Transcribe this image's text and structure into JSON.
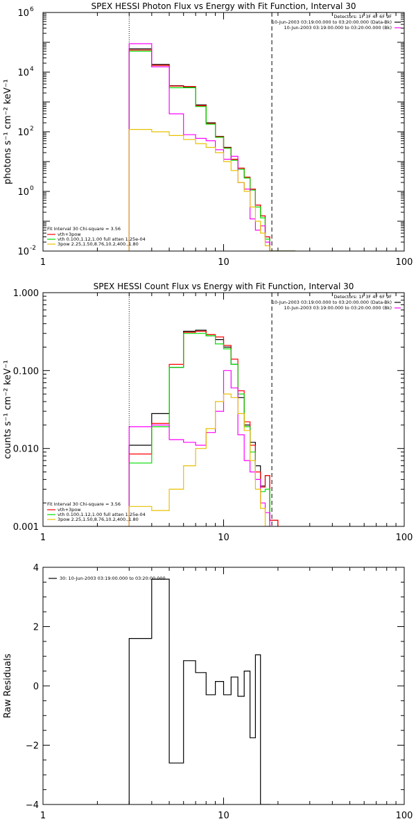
{
  "chart_data": [
    {
      "type": "line",
      "title": "SPEX HESSI Photon Flux vs Energy with Fit Function, Interval 30",
      "ylabel": "photons s⁻¹ cm⁻² keV⁻¹",
      "xlabel": "",
      "xscale": "log",
      "yscale": "log",
      "xlim": [
        1,
        100
      ],
      "ylim": [
        0.01,
        1000000
      ],
      "xticks": [
        {
          "v": 1,
          "label": "1"
        },
        {
          "v": 10,
          "label": "10"
        },
        {
          "v": 100,
          "label": "100"
        }
      ],
      "yticks": [
        {
          "v": 0.01,
          "base": "10",
          "exp": "-2"
        },
        {
          "v": 1,
          "base": "10",
          "exp": "0"
        },
        {
          "v": 100,
          "base": "10",
          "exp": "2"
        },
        {
          "v": 10000,
          "base": "10",
          "exp": "4"
        },
        {
          "v": 1000000,
          "base": "10",
          "exp": "6"
        }
      ],
      "vlines": [
        {
          "x": 3,
          "style": "dotted"
        },
        {
          "x": 18.5,
          "style": "dashed"
        }
      ],
      "legend_top": {
        "placement": "top-right",
        "lines": [
          {
            "text": "Detectors: 1F 3F 4F 6F 9F",
            "color": null
          },
          {
            "text": "10-Jun-2003 03:19:00.000 to 03:20:00.000 (Data-Bk)",
            "color": "#000000"
          },
          {
            "text": "10-Jun-2003 03:19:00.000 to 03:20:00.000 (Bk)",
            "color": "#ff00ff"
          }
        ]
      },
      "legend_fit": {
        "placement": "bottom-left",
        "header": "Fit Interval 30   Chi-square = 3.56",
        "lines": [
          {
            "text": "vth+3pow",
            "color": "#ff0000"
          },
          {
            "text": "vth 0.100,1.12,1.00  full atten 1.25e-04",
            "color": "#00dd00"
          },
          {
            "text": "3pow 2.25,1.50,8.76,10.2,400.,1.80",
            "color": "#e8c000"
          }
        ]
      },
      "series": [
        {
          "color": "#000000",
          "edges": [
            3,
            4,
            5,
            6,
            7,
            8,
            9,
            10,
            11,
            12,
            13,
            14,
            15,
            16,
            17,
            18,
            20,
            25
          ],
          "values": [
            60000,
            18000,
            3500,
            3200,
            800,
            200,
            70,
            30,
            12,
            6,
            3,
            1.2,
            0.35,
            0.15,
            0.03,
            0.01,
            0.01
          ]
        },
        {
          "color": "#ff0000",
          "edges": [
            3,
            4,
            5,
            6,
            7,
            8,
            9,
            10,
            11,
            12,
            13,
            14,
            15,
            16,
            17,
            18,
            20,
            25
          ],
          "values": [
            55000,
            17000,
            3400,
            3300,
            750,
            190,
            68,
            29,
            12,
            6,
            3,
            1.2,
            0.35,
            0.15,
            0.03,
            0.01,
            0.01
          ]
        },
        {
          "color": "#00dd00",
          "edges": [
            3,
            4,
            5,
            6,
            7,
            8,
            9,
            10,
            11,
            12,
            13,
            14,
            15,
            16,
            17,
            18,
            20,
            25
          ],
          "values": [
            50000,
            15000,
            3000,
            3000,
            700,
            180,
            65,
            28,
            11,
            5.5,
            2.8,
            1.1,
            0.3,
            0.13,
            0.025,
            0.01,
            0.01
          ]
        },
        {
          "color": "#ff00ff",
          "edges": [
            3,
            4,
            5,
            6,
            7,
            8,
            9,
            10,
            11,
            12,
            13,
            14,
            15,
            16,
            17,
            18
          ],
          "values": [
            90000,
            15000,
            400,
            80,
            60,
            50,
            25,
            12,
            15,
            2,
            1.2,
            0.12,
            0.05,
            0.07,
            0.02
          ]
        },
        {
          "color": "#e8c000",
          "edges": [
            3,
            4,
            5,
            6,
            7,
            8,
            9,
            10,
            11,
            12,
            13,
            14,
            15,
            16,
            17,
            18
          ],
          "values": [
            120,
            100,
            75,
            55,
            40,
            30,
            20,
            10,
            5,
            2,
            1,
            0.3,
            0.1,
            0.04,
            0.015
          ]
        }
      ]
    },
    {
      "type": "line",
      "title": "SPEX HESSI Count Flux vs Energy with Fit Function, Interval 30",
      "ylabel": "counts s⁻¹ cm⁻² keV⁻¹",
      "xlabel": "",
      "xscale": "log",
      "yscale": "log",
      "xlim": [
        1,
        100
      ],
      "ylim": [
        0.001,
        1.0
      ],
      "xticks": [
        {
          "v": 1,
          "label": "1"
        },
        {
          "v": 10,
          "label": "10"
        },
        {
          "v": 100,
          "label": "100"
        }
      ],
      "yticks": [
        {
          "v": 0.001,
          "label": "0.001"
        },
        {
          "v": 0.01,
          "label": "0.010"
        },
        {
          "v": 0.1,
          "label": "0.100"
        },
        {
          "v": 1.0,
          "label": "1.000"
        }
      ],
      "vlines": [
        {
          "x": 3,
          "style": "dotted"
        },
        {
          "x": 18.5,
          "style": "dashed"
        }
      ],
      "legend_top": {
        "placement": "top-right",
        "lines": [
          {
            "text": "Detectors: 1F 3F 4F 6F 9F",
            "color": null
          },
          {
            "text": "10-Jun-2003 03:19:00.000 to 03:20:00.000 (Data-Bk)",
            "color": "#000000"
          },
          {
            "text": "10-Jun-2003 03:19:00.000 to 03:20:00.000 (Bk)",
            "color": "#ff00ff"
          }
        ]
      },
      "legend_fit": {
        "placement": "bottom-left",
        "header": "Fit Interval 30   Chi-square = 3.56",
        "lines": [
          {
            "text": "vth+3pow",
            "color": "#ff0000"
          },
          {
            "text": "vth 0.100,1.12,1.00  full atten 1.25e-04",
            "color": "#00dd00"
          },
          {
            "text": "3pow 2.25,1.50,8.76,10.2,400.,1.80",
            "color": "#e8c000"
          }
        ]
      },
      "series": [
        {
          "color": "#000000",
          "edges": [
            3,
            4,
            5,
            6,
            7,
            8,
            9,
            10,
            11,
            12,
            13,
            14,
            15,
            16,
            17,
            18,
            20
          ],
          "values": [
            0.011,
            0.028,
            0.11,
            0.32,
            0.33,
            0.28,
            0.25,
            0.2,
            0.12,
            0.045,
            0.02,
            0.012,
            0.006,
            0.0033,
            0.0045,
            0.0012
          ]
        },
        {
          "color": "#ff0000",
          "edges": [
            3,
            4,
            5,
            6,
            7,
            8,
            9,
            10,
            11,
            12,
            13,
            14,
            15,
            16,
            17,
            18,
            20
          ],
          "values": [
            0.0085,
            0.021,
            0.12,
            0.31,
            0.32,
            0.29,
            0.27,
            0.21,
            0.14,
            0.055,
            0.022,
            0.011,
            0.005,
            0.0032,
            0.0045,
            0.0012
          ]
        },
        {
          "color": "#00dd00",
          "edges": [
            3,
            4,
            5,
            6,
            7,
            8,
            9,
            10,
            11,
            12,
            13,
            14,
            15,
            16,
            17,
            18
          ],
          "values": [
            0.0065,
            0.019,
            0.11,
            0.3,
            0.3,
            0.28,
            0.22,
            0.19,
            0.12,
            0.05,
            0.019,
            0.009,
            0.004,
            0.0028,
            0.003
          ]
        },
        {
          "color": "#ff00ff",
          "edges": [
            3,
            4,
            5,
            6,
            7,
            8,
            9,
            10,
            11,
            12,
            13,
            14,
            15,
            16,
            17,
            18
          ],
          "values": [
            0.019,
            0.02,
            0.013,
            0.012,
            0.011,
            0.016,
            0.03,
            0.1,
            0.06,
            0.015,
            0.007,
            0.005,
            0.004,
            0.002,
            0.0015
          ]
        },
        {
          "color": "#e8c000",
          "edges": [
            3,
            4,
            5,
            6,
            7,
            8,
            9,
            10,
            11,
            12,
            13,
            14,
            15,
            16,
            17,
            18
          ],
          "values": [
            0.0018,
            0.0016,
            0.003,
            0.006,
            0.01,
            0.018,
            0.04,
            0.05,
            0.045,
            0.028,
            0.017,
            0.007,
            0.003,
            0.0017,
            0.001
          ]
        }
      ]
    },
    {
      "type": "line",
      "title": "",
      "ylabel": "Raw Residuals",
      "xlabel": "",
      "xscale": "log",
      "yscale": "linear",
      "xlim": [
        1,
        100
      ],
      "ylim": [
        -4,
        4
      ],
      "xticks": [
        {
          "v": 1,
          "label": "1"
        },
        {
          "v": 10,
          "label": "10"
        },
        {
          "v": 100,
          "label": "100"
        }
      ],
      "yticks": [
        {
          "v": -4,
          "label": "−4"
        },
        {
          "v": -2,
          "label": "−2"
        },
        {
          "v": 0,
          "label": "0"
        },
        {
          "v": 2,
          "label": "2"
        },
        {
          "v": 4,
          "label": "4"
        }
      ],
      "legend_top": {
        "placement": "top-left",
        "lines": [
          {
            "text": "30: 10-Jun-2003 03:19:00.000 to 03:20:00.000",
            "color": "#000000"
          }
        ]
      },
      "series": [
        {
          "color": "#000000",
          "edges": [
            3,
            4,
            5,
            6,
            7,
            8,
            9,
            10,
            11,
            12,
            13,
            14,
            15,
            16,
            17,
            18
          ],
          "values": [
            1.6,
            3.6,
            -2.6,
            0.85,
            0.45,
            -0.3,
            0.15,
            -0.3,
            0.3,
            -0.35,
            0.5,
            -1.75,
            1.05,
            -4.0,
            -4.0
          ]
        }
      ]
    }
  ]
}
